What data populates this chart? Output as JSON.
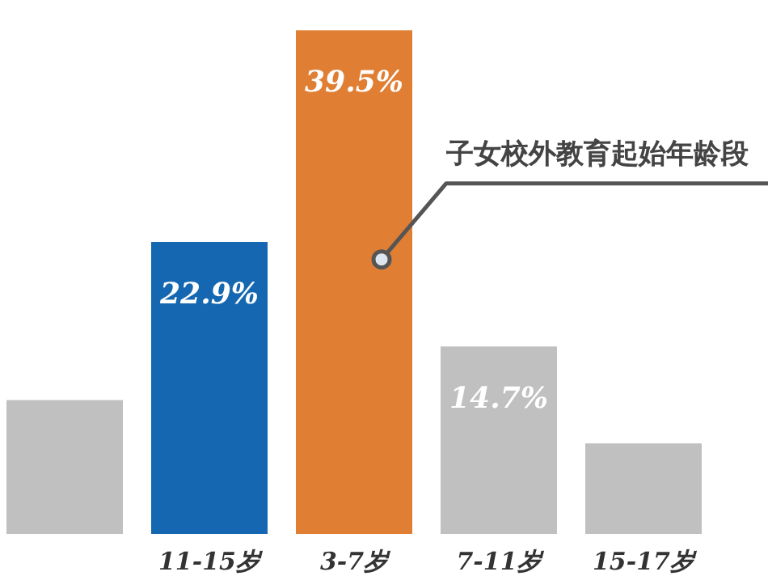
{
  "chart_data": {
    "type": "bar",
    "categories": [
      null,
      "11-15岁",
      "3-7岁",
      "7-11岁",
      "15-17岁"
    ],
    "values": [
      10.5,
      22.9,
      39.5,
      14.7,
      7.1
    ],
    "value_labels": [
      null,
      "22.9%",
      "39.5%",
      "14.7%",
      null
    ],
    "colors": [
      "#c0c0c0",
      "#1467b0",
      "#e07f33",
      "#c0c0c0",
      "#c0c0c0"
    ],
    "tick_labels": "x",
    "annotations": [
      "子女校外教育起始年龄段"
    ]
  }
}
